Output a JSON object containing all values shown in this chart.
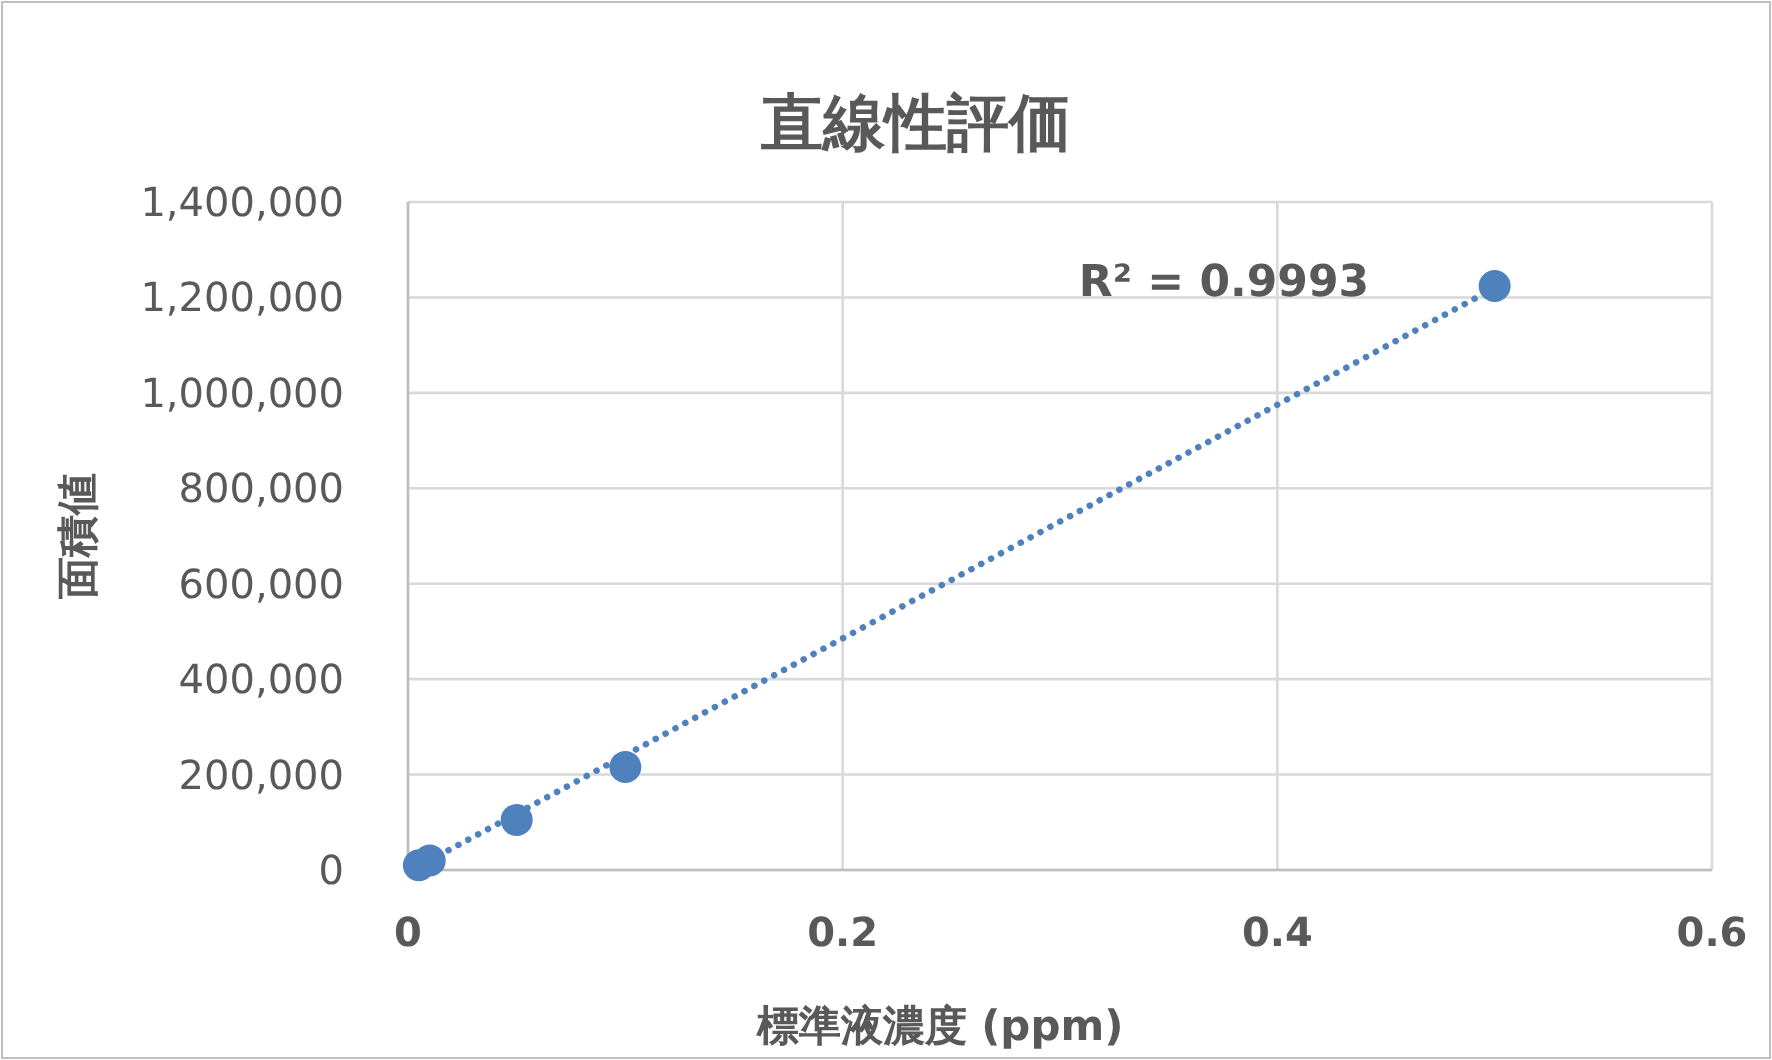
{
  "chart_data": {
    "type": "scatter",
    "title": "直線性評価",
    "xlabel": "標準液濃度 (ppm)",
    "ylabel": "面積値",
    "annotations": [
      "R² = 0.9993"
    ],
    "series": [
      {
        "color": "#4f81bd",
        "x": [
          0.005,
          0.01,
          0.05,
          0.1,
          0.5
        ],
        "values": [
          10000,
          20000,
          105000,
          216000,
          1224000
        ],
        "marker": "circle"
      },
      {
        "type": "line",
        "color": "#4f81bd",
        "x": [
          0.005,
          0.5
        ],
        "values": [
          8000,
          1220000
        ],
        "line_style": "dotted",
        "marker": "none"
      }
    ],
    "xlim": [
      0,
      0.6
    ],
    "xticks": [
      0,
      0.2,
      0.4,
      0.6
    ],
    "ylim": [
      0,
      1400000
    ],
    "yticks": [
      0,
      {
        "value": 200000,
        "label": "200,000"
      },
      {
        "value": 400000,
        "label": "400,000"
      },
      {
        "value": 600000,
        "label": "600,000"
      },
      {
        "value": 800000,
        "label": "800,000"
      },
      {
        "value": 1000000,
        "label": "1,000,000"
      },
      {
        "value": 1200000,
        "label": "1,200,000"
      },
      {
        "value": 1400000,
        "label": "1,400,000"
      }
    ],
    "grid": true
  }
}
